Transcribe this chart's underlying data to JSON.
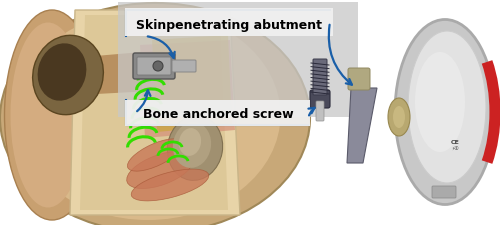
{
  "figsize": [
    5.0,
    2.25
  ],
  "dpi": 100,
  "bg_color": "#ffffff",
  "label1_text": "Skinpenetrating abutment",
  "label2_text": "Bone anchored screw",
  "label_fontsize": 9,
  "label_bg": "#e8e8e8",
  "arrow_color": "#1a5fa8",
  "arrow_lw": 1.6,
  "gray_panel_color": "#c8c8c8",
  "gray_panel_alpha": 0.75,
  "xlim": [
    0,
    500
  ],
  "ylim": [
    0,
    225
  ]
}
